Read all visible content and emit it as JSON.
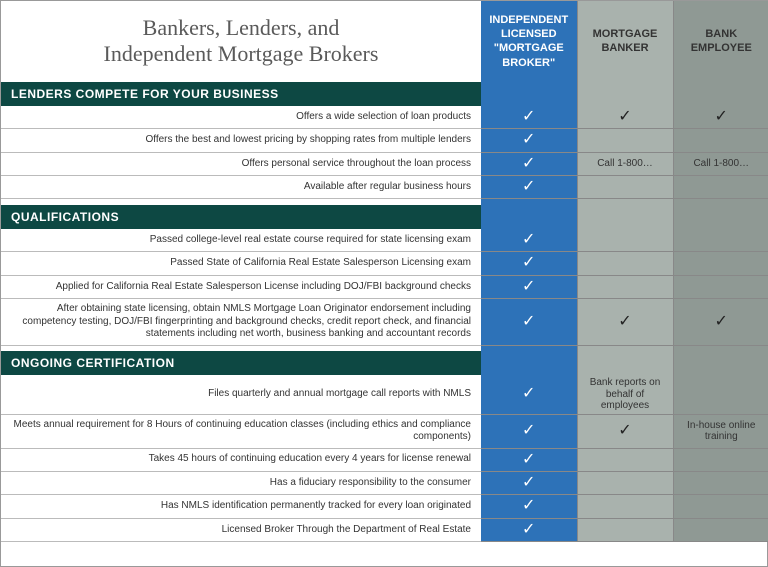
{
  "title": "Bankers, Lenders, and\nIndependent Mortgage Brokers",
  "columns": {
    "broker": "INDEPENDENT\nLICENSED\n\"MORTGAGE\nBROKER\"",
    "banker": "MORTGAGE\nBANKER",
    "employee": "BANK\nEMPLOYEE"
  },
  "colors": {
    "section_bg": "#0d4843",
    "broker_bg": "#2d72b8",
    "banker_bg": "#a9b2ad",
    "employee_bg": "#8f9994",
    "border": "#888888"
  },
  "col_widths": {
    "label": 480,
    "broker": 96,
    "banker": 96,
    "employee": 96
  },
  "sections": [
    {
      "title": "LENDERS COMPETE FOR YOUR BUSINESS",
      "rows": [
        {
          "label": "Offers a wide selection of loan products",
          "broker": "✓",
          "banker": "✓",
          "employee": "✓"
        },
        {
          "label": "Offers the best and lowest pricing by shopping rates from multiple lenders",
          "broker": "✓",
          "banker": "",
          "employee": ""
        },
        {
          "label": "Offers personal service throughout the loan process",
          "broker": "✓",
          "banker": "Call 1-800…",
          "employee": "Call 1-800…"
        },
        {
          "label": "Available after regular business hours",
          "broker": "✓",
          "banker": "",
          "employee": ""
        }
      ]
    },
    {
      "title": "QUALIFICATIONS",
      "rows": [
        {
          "label": "Passed college-level real estate course required for state licensing exam",
          "broker": "✓",
          "banker": "",
          "employee": ""
        },
        {
          "label": "Passed State of California Real Estate Salesperson Licensing exam",
          "broker": "✓",
          "banker": "",
          "employee": ""
        },
        {
          "label": "Applied for California Real Estate Salesperson License including DOJ/FBI background checks",
          "broker": "✓",
          "banker": "",
          "employee": ""
        },
        {
          "label": "After obtaining state licensing, obtain NMLS Mortgage Loan Originator endorsement including competency testing, DOJ/FBI fingerprinting and background checks, credit report check, and financial statements including net worth, business banking and accountant records",
          "broker": "✓",
          "banker": "✓",
          "employee": "✓"
        }
      ]
    },
    {
      "title": "ONGOING CERTIFICATION",
      "rows": [
        {
          "label": "Files quarterly and annual mortgage call reports with NMLS",
          "broker": "✓",
          "banker": "Bank reports on behalf of employees",
          "employee": ""
        },
        {
          "label": "Meets annual requirement for 8 Hours of continuing education classes (including ethics and compliance components)",
          "broker": "✓",
          "banker": "✓",
          "employee": "In-house online training"
        },
        {
          "label": "Takes 45 hours of continuing education every 4 years for license renewal",
          "broker": "✓",
          "banker": "",
          "employee": ""
        },
        {
          "label": "Has a fiduciary responsibility to the consumer",
          "broker": "✓",
          "banker": "",
          "employee": ""
        },
        {
          "label": "Has NMLS identification permanently tracked for every loan originated",
          "broker": "✓",
          "banker": "",
          "employee": ""
        },
        {
          "label": "Licensed Broker Through the Department of Real Estate",
          "broker": "✓",
          "banker": "",
          "employee": ""
        }
      ]
    }
  ]
}
